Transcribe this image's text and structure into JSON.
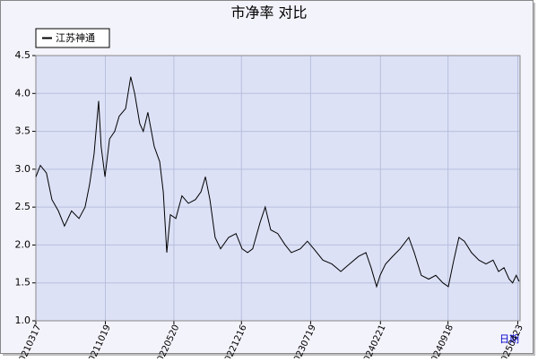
{
  "chart_data": {
    "type": "line",
    "title": "市净率  对比",
    "x_label": "日期",
    "x": [
      "20210317",
      "20210331",
      "20210419",
      "20210506",
      "20210526",
      "20210614",
      "20210706",
      "20210729",
      "20210817",
      "20210831",
      "20210914",
      "20210928",
      "20211006",
      "20211018",
      "20211101",
      "20211117",
      "20211201",
      "20211221",
      "20220106",
      "20220118",
      "20220203",
      "20220214",
      "20220228",
      "20220320",
      "20220406",
      "20220417",
      "20220428",
      "20220509",
      "20220526",
      "20220614",
      "20220704",
      "20220726",
      "20220812",
      "20220826",
      "20220909",
      "20220925",
      "20221012",
      "20221106",
      "20221129",
      "20221218",
      "20230104",
      "20230120",
      "20230212",
      "20230228",
      "20230317",
      "20230408",
      "20230501",
      "20230520",
      "20230617",
      "20230709",
      "20230729",
      "20230826",
      "20230923",
      "20231021",
      "20231117",
      "20231215",
      "20240107",
      "20240123",
      "20240209",
      "20240220",
      "20240308",
      "20240330",
      "20240422",
      "20240519",
      "20240605",
      "20240627",
      "20240720",
      "20240811",
      "20240902",
      "20240919",
      "20241006",
      "20241022",
      "20241108",
      "20241130",
      "20241223",
      "20250114",
      "20250205",
      "20250222",
      "20250311",
      "20250327",
      "20250407",
      "20250418",
      "20250427"
    ],
    "series": [
      {
        "name": "江苏神通",
        "color": "#000000",
        "values": [
          2.9,
          3.05,
          2.95,
          2.6,
          2.45,
          2.25,
          2.45,
          2.35,
          2.5,
          2.8,
          3.2,
          3.9,
          3.3,
          2.9,
          3.4,
          3.5,
          3.7,
          3.8,
          4.22,
          4.0,
          3.6,
          3.5,
          3.75,
          3.3,
          3.1,
          2.7,
          1.9,
          2.4,
          2.35,
          2.65,
          2.55,
          2.6,
          2.7,
          2.9,
          2.6,
          2.1,
          1.95,
          2.1,
          2.15,
          1.95,
          1.9,
          1.95,
          2.3,
          2.5,
          2.2,
          2.15,
          2.0,
          1.9,
          1.95,
          2.05,
          1.95,
          1.8,
          1.75,
          1.65,
          1.75,
          1.85,
          1.9,
          1.7,
          1.45,
          1.6,
          1.75,
          1.85,
          1.95,
          2.1,
          1.9,
          1.6,
          1.55,
          1.6,
          1.5,
          1.45,
          1.8,
          2.1,
          2.05,
          1.9,
          1.8,
          1.75,
          1.8,
          1.65,
          1.7,
          1.55,
          1.5,
          1.6,
          1.52
        ]
      }
    ],
    "xlim": [
      "20210317",
      "20250430"
    ],
    "xticks": [
      "20210317",
      "20211019",
      "20220520",
      "20221216",
      "20230719",
      "20240221",
      "20240918",
      "20250423"
    ],
    "ylim": [
      1.0,
      4.5
    ],
    "yticks": [
      {
        "value": 1.0,
        "label": "1.0"
      },
      {
        "value": 1.5,
        "label": "1.5"
      },
      {
        "value": 2.0,
        "label": "2.0"
      },
      {
        "value": 2.5,
        "label": "2.5"
      },
      {
        "value": 3.0,
        "label": "3.0"
      },
      {
        "value": 3.5,
        "label": "3.5"
      },
      {
        "value": 4.0,
        "label": "4.0"
      },
      {
        "value": 4.5,
        "label": "4.5"
      }
    ],
    "grid": true
  }
}
